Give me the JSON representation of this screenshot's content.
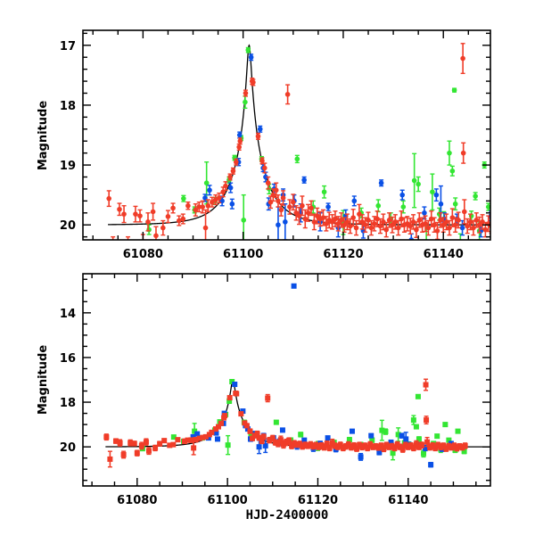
{
  "chart_data": [
    {
      "type": "scatter",
      "panel": "top",
      "title": "",
      "xlabel": "",
      "ylabel": "Magnitude",
      "xlim": [
        61068,
        61149.4
      ],
      "ylim": [
        20.25,
        16.75
      ],
      "y_inverted": true,
      "x_major_ticks": [
        61080,
        61100,
        61120,
        61140
      ],
      "x_tick_labels": [
        "61080",
        "61100",
        "61120",
        "61140"
      ],
      "x_minor_step": 5,
      "y_major_ticks": [
        17,
        18,
        19,
        20
      ],
      "y_tick_labels": [
        "17",
        "18",
        "19",
        "20"
      ],
      "y_minor_step": 0.2,
      "grid": false,
      "legend": "none"
    },
    {
      "type": "scatter",
      "panel": "bottom",
      "title": "",
      "xlabel": "HJD-2400000",
      "ylabel": "Magnitude",
      "xlim": [
        61068,
        61158.2
      ],
      "ylim": [
        21.75,
        12.25
      ],
      "y_inverted": true,
      "x_major_ticks": [
        61080,
        61100,
        61120,
        61140
      ],
      "x_tick_labels": [
        "61080",
        "61100",
        "61120",
        "61140"
      ],
      "x_minor_step": 5,
      "y_major_ticks": [
        14,
        16,
        18,
        20
      ],
      "y_tick_labels": [
        "14",
        "16",
        "18",
        "20"
      ],
      "y_minor_step": 0.5,
      "grid": false,
      "legend": "none"
    }
  ],
  "model": {
    "name": "fit",
    "color": "#000000",
    "baseline_mag": 20.0,
    "peak_mag": 17.0,
    "t0": 61101.2,
    "tE": 1.6,
    "x_start": 61073
  },
  "series": [
    {
      "name": "red",
      "color": "#f03c28",
      "points": [
        [
          61073.2,
          19.56,
          0.13
        ],
        [
          61074.0,
          20.55,
          0.35
        ],
        [
          61075.3,
          19.74,
          0.1
        ],
        [
          61076.2,
          19.82,
          0.14
        ],
        [
          61077.0,
          20.35,
          0.15
        ],
        [
          61078.5,
          19.82,
          0.13
        ],
        [
          61079.4,
          19.85,
          0.1
        ],
        [
          61080.0,
          20.28,
          0.12
        ],
        [
          61081.0,
          19.95,
          0.15
        ],
        [
          61082.0,
          19.78,
          0.14
        ],
        [
          61082.6,
          20.18,
          0.15
        ],
        [
          61084.0,
          20.05,
          0.12
        ],
        [
          61085.0,
          19.86,
          0.1
        ],
        [
          61086.0,
          19.72,
          0.08
        ],
        [
          61087.2,
          19.93,
          0.08
        ],
        [
          61088.0,
          19.9,
          0.08
        ],
        [
          61089.0,
          19.68,
          0.06
        ],
        [
          61090.5,
          19.75,
          0.1
        ],
        [
          61091.2,
          19.7,
          0.08
        ],
        [
          61091.9,
          19.7,
          0.1
        ],
        [
          61092.5,
          20.05,
          0.3
        ],
        [
          61093.0,
          19.68,
          0.1
        ],
        [
          61093.8,
          19.62,
          0.08
        ],
        [
          61094.5,
          19.58,
          0.08
        ],
        [
          61095.2,
          19.55,
          0.08
        ],
        [
          61096.0,
          19.45,
          0.08
        ],
        [
          61096.5,
          19.35,
          0.07
        ],
        [
          61097.4,
          19.2,
          0.05
        ],
        [
          61098.0,
          19.1,
          0.05
        ],
        [
          61098.6,
          18.95,
          0.05
        ],
        [
          61099.2,
          18.7,
          0.05
        ],
        [
          61099.4,
          18.6,
          0.05
        ],
        [
          61100.5,
          17.8,
          0.05
        ],
        [
          61101.8,
          17.6,
          0.05
        ],
        [
          61102.0,
          17.62,
          0.05
        ],
        [
          61103.0,
          18.52,
          0.05
        ],
        [
          61103.8,
          18.93,
          0.05
        ],
        [
          61104.3,
          19.05,
          0.08
        ],
        [
          61105.0,
          19.3,
          0.1
        ],
        [
          61105.5,
          19.62,
          0.1
        ],
        [
          61106.0,
          19.5,
          0.1
        ],
        [
          61106.6,
          19.42,
          0.12
        ],
        [
          61107.0,
          19.6,
          0.1
        ],
        [
          61107.6,
          19.75,
          0.1
        ],
        [
          61108.0,
          19.55,
          0.12
        ],
        [
          61108.9,
          17.82,
          0.16
        ],
        [
          61109.3,
          19.7,
          0.12
        ],
        [
          61110.0,
          19.62,
          0.13
        ],
        [
          61110.6,
          19.8,
          0.12
        ],
        [
          61111.2,
          19.85,
          0.14
        ],
        [
          61111.8,
          19.68,
          0.16
        ],
        [
          61112.4,
          19.9,
          0.15
        ],
        [
          61113.0,
          19.8,
          0.14
        ],
        [
          61113.6,
          19.72,
          0.12
        ],
        [
          61114.2,
          19.95,
          0.13
        ],
        [
          61114.8,
          19.85,
          0.13
        ],
        [
          61115.4,
          19.9,
          0.12
        ],
        [
          61116.0,
          19.88,
          0.13
        ],
        [
          61116.6,
          19.98,
          0.12
        ],
        [
          61117.2,
          19.92,
          0.13
        ],
        [
          61117.8,
          19.95,
          0.12
        ],
        [
          61118.4,
          19.9,
          0.13
        ],
        [
          61119.0,
          19.98,
          0.12
        ],
        [
          61119.6,
          19.92,
          0.12
        ],
        [
          61120.2,
          20.0,
          0.12
        ],
        [
          61120.8,
          19.95,
          0.13
        ],
        [
          61121.4,
          20.02,
          0.12
        ],
        [
          61122.0,
          19.88,
          0.14
        ],
        [
          61122.6,
          20.05,
          0.12
        ],
        [
          61123.2,
          19.82,
          0.16
        ],
        [
          61123.8,
          19.95,
          0.12
        ],
        [
          61124.4,
          20.0,
          0.12
        ],
        [
          61125.0,
          19.92,
          0.13
        ],
        [
          61125.6,
          20.05,
          0.12
        ],
        [
          61126.2,
          19.98,
          0.12
        ],
        [
          61126.8,
          19.9,
          0.13
        ],
        [
          61127.4,
          20.02,
          0.12
        ],
        [
          61128.0,
          19.95,
          0.13
        ],
        [
          61128.6,
          20.08,
          0.12
        ],
        [
          61129.2,
          19.92,
          0.12
        ],
        [
          61129.8,
          20.0,
          0.13
        ],
        [
          61130.4,
          19.95,
          0.12
        ],
        [
          61131.0,
          20.05,
          0.12
        ],
        [
          61131.6,
          19.9,
          0.13
        ],
        [
          61132.2,
          20.0,
          0.12
        ],
        [
          61132.8,
          19.98,
          0.12
        ],
        [
          61133.4,
          20.02,
          0.13
        ],
        [
          61134.0,
          19.95,
          0.12
        ],
        [
          61134.6,
          20.08,
          0.13
        ],
        [
          61135.2,
          19.92,
          0.12
        ],
        [
          61135.8,
          20.0,
          0.12
        ],
        [
          61136.4,
          19.98,
          0.13
        ],
        [
          61137.0,
          20.05,
          0.12
        ],
        [
          61137.6,
          19.9,
          0.13
        ],
        [
          61138.2,
          20.0,
          0.12
        ],
        [
          61138.8,
          20.1,
          0.14
        ],
        [
          61139.4,
          19.92,
          0.12
        ],
        [
          61140.0,
          20.0,
          0.12
        ],
        [
          61140.6,
          19.95,
          0.13
        ],
        [
          61141.2,
          20.05,
          0.12
        ],
        [
          61141.8,
          19.88,
          0.15
        ],
        [
          61142.4,
          20.0,
          0.12
        ],
        [
          61143.0,
          19.92,
          0.13
        ],
        [
          61143.9,
          17.22,
          0.25
        ],
        [
          61144.0,
          18.8,
          0.17
        ],
        [
          61144.2,
          19.78,
          0.2
        ],
        [
          61144.8,
          20.02,
          0.12
        ],
        [
          61145.4,
          19.95,
          0.13
        ],
        [
          61146.0,
          20.05,
          0.12
        ],
        [
          61146.6,
          19.92,
          0.12
        ],
        [
          61147.2,
          20.0,
          0.13
        ],
        [
          61147.8,
          19.95,
          0.12
        ],
        [
          61148.4,
          20.08,
          0.12
        ],
        [
          61149.0,
          19.98,
          0.13
        ],
        [
          61149.6,
          20.02,
          0.12
        ],
        [
          61150.2,
          19.95,
          0.12
        ],
        [
          61150.8,
          20.05,
          0.13
        ],
        [
          61151.4,
          19.98,
          0.12
        ],
        [
          61152.0,
          20.02,
          0.12
        ],
        [
          61152.6,
          19.95,
          0.12
        ]
      ]
    },
    {
      "name": "green",
      "color": "#33e633",
      "points": [
        [
          61081.2,
          20.08,
          0.08
        ],
        [
          61088.1,
          19.56,
          0.05
        ],
        [
          61090.3,
          19.75,
          0.05
        ],
        [
          61092.7,
          19.3,
          0.35
        ],
        [
          61094.4,
          19.6,
          0.06
        ],
        [
          61097.2,
          19.25,
          0.05
        ],
        [
          61098.3,
          18.88,
          0.04
        ],
        [
          61099.6,
          18.55,
          0.04
        ],
        [
          61100.1,
          19.92,
          0.42
        ],
        [
          61100.4,
          17.95,
          0.1
        ],
        [
          61101.0,
          17.08,
          0.04
        ],
        [
          61103.7,
          18.9,
          0.04
        ],
        [
          61105.2,
          19.4,
          0.08
        ],
        [
          61110.8,
          18.9,
          0.06
        ],
        [
          61114.0,
          19.7,
          0.1
        ],
        [
          61116.2,
          19.45,
          0.1
        ],
        [
          61120.0,
          19.96,
          0.2
        ],
        [
          61123.6,
          19.8,
          0.08
        ],
        [
          61127.0,
          19.68,
          0.1
        ],
        [
          61129.5,
          19.9,
          0.1
        ],
        [
          61132.0,
          19.7,
          0.1
        ],
        [
          61134.2,
          19.26,
          0.45
        ],
        [
          61135.0,
          19.32,
          0.12
        ],
        [
          61136.6,
          20.28,
          0.3
        ],
        [
          61137.8,
          19.45,
          0.3
        ],
        [
          61139.2,
          19.82,
          0.1
        ],
        [
          61140.1,
          19.9,
          0.12
        ],
        [
          61141.2,
          18.8,
          0.2
        ],
        [
          61141.8,
          19.1,
          0.08
        ],
        [
          61142.2,
          17.75,
          0.03
        ],
        [
          61142.4,
          19.65,
          0.1
        ],
        [
          61143.4,
          20.3,
          0.15
        ],
        [
          61145.6,
          19.85,
          0.08
        ],
        [
          61146.4,
          19.52,
          0.06
        ],
        [
          61147.2,
          20.1,
          0.15
        ],
        [
          61148.2,
          19.0,
          0.05
        ],
        [
          61149.0,
          19.7,
          0.06
        ],
        [
          61150.4,
          20.15,
          0.1
        ],
        [
          61151.0,
          19.3,
          0.05
        ],
        [
          61152.4,
          20.2,
          0.1
        ]
      ]
    },
    {
      "name": "blue",
      "color": "#0a50e6",
      "points": [
        [
          61092.4,
          19.55,
          0.06
        ],
        [
          61093.3,
          19.42,
          0.08
        ],
        [
          61095.8,
          19.6,
          0.08
        ],
        [
          61097.5,
          19.38,
          0.08
        ],
        [
          61097.8,
          19.65,
          0.08
        ],
        [
          61099.1,
          18.95,
          0.06
        ],
        [
          61099.3,
          18.5,
          0.05
        ],
        [
          61101.6,
          17.2,
          0.05
        ],
        [
          61103.4,
          18.4,
          0.05
        ],
        [
          61104.0,
          19.05,
          0.06
        ],
        [
          61104.5,
          19.2,
          0.08
        ],
        [
          61105.1,
          19.65,
          0.1
        ],
        [
          61106.2,
          19.4,
          0.08
        ],
        [
          61107.0,
          20.0,
          0.3
        ],
        [
          61108.0,
          19.5,
          0.1
        ],
        [
          61108.4,
          19.95,
          0.3
        ],
        [
          61110.2,
          19.6,
          0.1
        ],
        [
          61111.5,
          19.8,
          0.15
        ],
        [
          61112.2,
          19.25,
          0.05
        ],
        [
          61114.7,
          12.8,
          0.05
        ],
        [
          61115.4,
          19.95,
          0.15
        ],
        [
          61117.0,
          19.7,
          0.06
        ],
        [
          61119.0,
          20.05,
          0.15
        ],
        [
          61120.5,
          19.85,
          0.1
        ],
        [
          61122.2,
          19.6,
          0.08
        ],
        [
          61124.0,
          20.1,
          0.12
        ],
        [
          61127.6,
          19.3,
          0.05
        ],
        [
          61129.5,
          20.45,
          0.15
        ],
        [
          61131.8,
          19.5,
          0.08
        ],
        [
          61133.6,
          20.25,
          0.1
        ],
        [
          61136.2,
          19.8,
          0.1
        ],
        [
          61138.6,
          19.5,
          0.1
        ],
        [
          61139.5,
          19.65,
          0.3
        ],
        [
          61140.2,
          19.9,
          0.1
        ],
        [
          61142.7,
          19.9,
          0.08
        ],
        [
          61143.8,
          20.05,
          0.12
        ],
        [
          61145.0,
          20.8,
          0.1
        ],
        [
          61147.5,
          20.1,
          0.1
        ],
        [
          61149.5,
          19.85,
          0.08
        ],
        [
          61151.5,
          20.0,
          0.1
        ]
      ]
    }
  ]
}
